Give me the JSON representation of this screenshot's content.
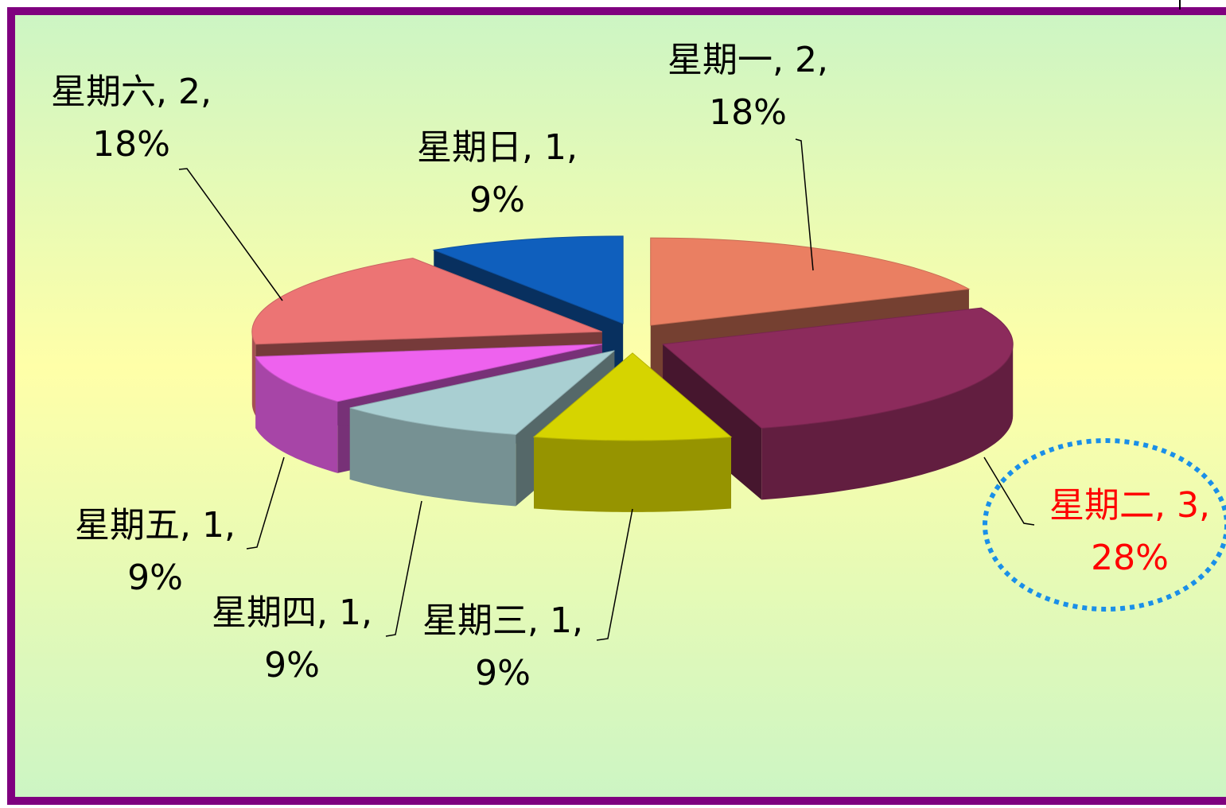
{
  "chart_data": {
    "type": "pie3d",
    "categories": [
      "星期一",
      "星期二",
      "星期三",
      "星期四",
      "星期五",
      "星期六",
      "星期日"
    ],
    "values": [
      2,
      3,
      1,
      1,
      1,
      2,
      1
    ],
    "value_labels": [
      [
        "星期一, 2,",
        "18%"
      ],
      [
        "星期二, 3,",
        "28%"
      ],
      [
        "星期三, 1,",
        "9%"
      ],
      [
        "星期四, 1,",
        "9%"
      ],
      [
        "星期五, 1,",
        "9%"
      ],
      [
        "星期六, 2,",
        "18%"
      ],
      [
        "星期日, 1,",
        "9%"
      ]
    ],
    "colors": [
      "#ea7f62",
      "#8c2b5c",
      "#d6d400",
      "#a9cfd2",
      "#ee62ee",
      "#ec7474",
      "#0f5fbd"
    ],
    "label_colors": [
      "#000000",
      "#ff0000",
      "#000000",
      "#000000",
      "#000000",
      "#000000",
      "#000000"
    ]
  }
}
